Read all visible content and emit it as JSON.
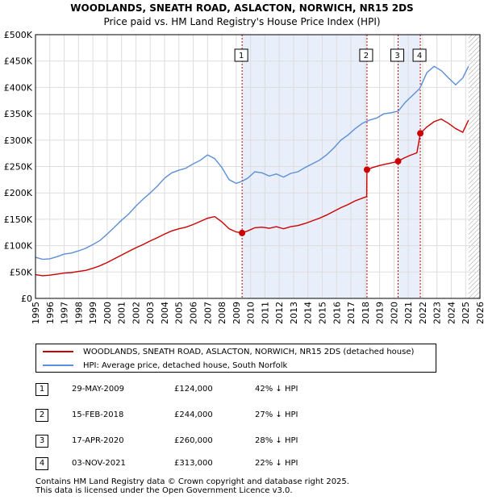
{
  "title_line1": "WOODLANDS, SNEATH ROAD, ASLACTON, NORWICH, NR15 2DS",
  "title_line2": "Price paid vs. HM Land Registry's House Price Index (HPI)",
  "chart_data": {
    "type": "line",
    "title": "WOODLANDS, SNEATH ROAD, ASLACTON, NORWICH, NR15 2DS - Price paid vs. HM Land Registry's House Price Index (HPI)",
    "xlabel": "",
    "ylabel": "",
    "xlim": [
      1995,
      2026
    ],
    "ylim": [
      0,
      500000
    ],
    "y_ticks": [
      0,
      50000,
      100000,
      150000,
      200000,
      250000,
      300000,
      350000,
      400000,
      450000,
      500000
    ],
    "y_tick_labels": [
      "£0",
      "£50K",
      "£100K",
      "£150K",
      "£200K",
      "£250K",
      "£300K",
      "£350K",
      "£400K",
      "£450K",
      "£500K"
    ],
    "x_ticks": [
      1995,
      1996,
      1997,
      1998,
      1999,
      2000,
      2001,
      2002,
      2003,
      2004,
      2005,
      2006,
      2007,
      2008,
      2009,
      2010,
      2011,
      2012,
      2013,
      2014,
      2015,
      2016,
      2017,
      2018,
      2019,
      2020,
      2021,
      2022,
      2023,
      2024,
      2025,
      2026
    ],
    "x_tick_labels": [
      "1995",
      "1996",
      "1997",
      "1998",
      "1999",
      "2000",
      "2001",
      "2002",
      "2003",
      "2004",
      "2005",
      "2006",
      "2007",
      "2008",
      "2009",
      "2010",
      "2011",
      "2012",
      "2013",
      "2014",
      "2015",
      "2016",
      "2017",
      "2018",
      "2019",
      "2020",
      "2021",
      "2022",
      "2023",
      "2024",
      "2025",
      "2026"
    ],
    "grid": true,
    "series": [
      {
        "name": "HPI: Average price, detached house, South Norfolk",
        "color": "#5b8fd6",
        "x": [
          1995,
          1995.5,
          1996,
          1996.5,
          1997,
          1997.5,
          1998,
          1998.5,
          1999,
          1999.5,
          2000,
          2000.5,
          2001,
          2001.5,
          2002,
          2002.5,
          2003,
          2003.5,
          2004,
          2004.5,
          2005,
          2005.5,
          2006,
          2006.5,
          2007,
          2007.5,
          2008,
          2008.5,
          2009,
          2009.4,
          2009.8,
          2010.3,
          2010.8,
          2011.3,
          2011.8,
          2012.3,
          2012.8,
          2013.3,
          2013.8,
          2014.3,
          2014.8,
          2015.3,
          2015.8,
          2016.3,
          2016.8,
          2017.3,
          2017.8,
          2018.3,
          2018.8,
          2019.3,
          2019.8,
          2020.3,
          2020.8,
          2021.3,
          2021.8,
          2022.3,
          2022.8,
          2023.3,
          2023.8,
          2024.3,
          2024.8,
          2025.2
        ],
        "values": [
          78000,
          74000,
          75000,
          79000,
          84000,
          86000,
          90000,
          95000,
          102000,
          110000,
          122000,
          135000,
          148000,
          160000,
          175000,
          188000,
          200000,
          213000,
          228000,
          238000,
          243000,
          247000,
          255000,
          262000,
          272000,
          265000,
          248000,
          225000,
          218000,
          222000,
          228000,
          240000,
          238000,
          232000,
          236000,
          230000,
          237000,
          240000,
          248000,
          255000,
          262000,
          272000,
          285000,
          300000,
          310000,
          322000,
          332000,
          338000,
          342000,
          350000,
          352000,
          355000,
          372000,
          385000,
          398000,
          428000,
          440000,
          432000,
          418000,
          405000,
          418000,
          440000
        ]
      },
      {
        "name": "WOODLANDS, SNEATH ROAD, ASLACTON, NORWICH, NR15 2DS (detached house)",
        "color": "#cc0000",
        "x": [
          1995,
          1995.5,
          1996,
          1996.5,
          1997,
          1997.5,
          1998,
          1998.5,
          1999,
          1999.5,
          2000,
          2000.5,
          2001,
          2001.5,
          2002,
          2002.5,
          2003,
          2003.5,
          2004,
          2004.5,
          2005,
          2005.5,
          2006,
          2006.5,
          2007,
          2007.5,
          2008,
          2008.5,
          2009,
          2009.41,
          2009.8,
          2010.3,
          2010.8,
          2011.3,
          2011.8,
          2012.3,
          2012.8,
          2013.3,
          2013.8,
          2014.3,
          2014.8,
          2015.3,
          2015.8,
          2016.3,
          2016.8,
          2017.3,
          2017.8,
          2018.1,
          2018.12,
          2018.5,
          2019,
          2019.5,
          2020,
          2020.29,
          2020.7,
          2021.2,
          2021.6,
          2021.84,
          2022.3,
          2022.8,
          2023.3,
          2023.8,
          2024.3,
          2024.8,
          2025.2
        ],
        "values": [
          45000,
          43000,
          44000,
          46000,
          48000,
          49000,
          51000,
          53000,
          57000,
          62000,
          68000,
          75000,
          82000,
          89000,
          96000,
          102000,
          109000,
          115000,
          122000,
          128000,
          132000,
          135000,
          140000,
          146000,
          152000,
          155000,
          145000,
          132000,
          126000,
          124000,
          128000,
          134000,
          135000,
          133000,
          136000,
          132000,
          136000,
          138000,
          142000,
          147000,
          152000,
          158000,
          165000,
          172000,
          178000,
          185000,
          190000,
          193000,
          244000,
          248000,
          252000,
          255000,
          258000,
          260000,
          266000,
          272000,
          276000,
          313000,
          325000,
          335000,
          340000,
          332000,
          322000,
          315000,
          338000
        ]
      }
    ],
    "transactions": [
      {
        "num": "1",
        "x": 2009.41,
        "price": 124000,
        "date": "29-MAY-2009",
        "price_label": "£124,000",
        "hpi": "42% ↓ HPI"
      },
      {
        "num": "2",
        "x": 2018.12,
        "price": 244000,
        "date": "15-FEB-2018",
        "price_label": "£244,000",
        "hpi": "27% ↓ HPI"
      },
      {
        "num": "3",
        "x": 2020.29,
        "price": 260000,
        "date": "17-APR-2020",
        "price_label": "£260,000",
        "hpi": "28% ↓ HPI"
      },
      {
        "num": "4",
        "x": 2021.84,
        "price": 313000,
        "date": "03-NOV-2021",
        "price_label": "£313,000",
        "hpi": "22% ↓ HPI"
      }
    ],
    "shaded_periods": [
      [
        2009.41,
        2018.12
      ],
      [
        2020.29,
        2021.84
      ]
    ],
    "hatched_from": 2025.2
  },
  "legend": {
    "property": "WOODLANDS, SNEATH ROAD, ASLACTON, NORWICH, NR15 2DS (detached house)",
    "hpi": "HPI: Average price, detached house, South Norfolk",
    "property_color": "#cc0000",
    "hpi_color": "#5b8fd6"
  },
  "footer": {
    "line1": "Contains HM Land Registry data © Crown copyright and database right 2025.",
    "line2": "This data is licensed under the Open Government Licence v3.0."
  }
}
